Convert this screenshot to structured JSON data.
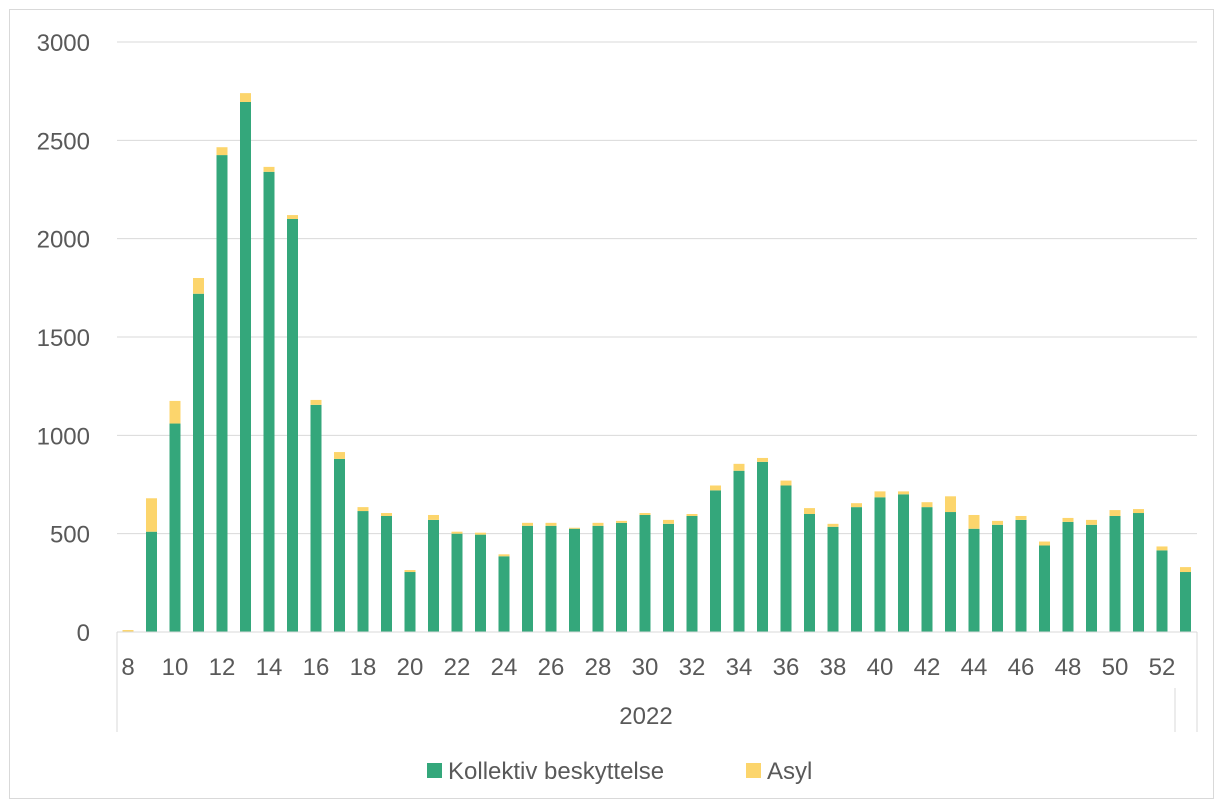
{
  "chart_data": {
    "type": "bar",
    "stacked": true,
    "title": "",
    "xlabel": "",
    "ylabel": "",
    "x_group_label": "2022",
    "categories": [
      "8",
      "9",
      "10",
      "11",
      "12",
      "13",
      "14",
      "15",
      "16",
      "17",
      "18",
      "19",
      "20",
      "21",
      "22",
      "23",
      "24",
      "25",
      "26",
      "27",
      "28",
      "29",
      "30",
      "31",
      "32",
      "33",
      "34",
      "35",
      "36",
      "37",
      "38",
      "39",
      "40",
      "41",
      "42",
      "43",
      "44",
      "45",
      "46",
      "47",
      "48",
      "49",
      "50",
      "51",
      "52",
      "53"
    ],
    "shown_x_ticks": [
      "8",
      "10",
      "12",
      "14",
      "16",
      "18",
      "20",
      "22",
      "24",
      "26",
      "28",
      "30",
      "32",
      "34",
      "36",
      "38",
      "40",
      "42",
      "44",
      "46",
      "48",
      "50",
      "52"
    ],
    "y_ticks": [
      "0",
      "500",
      "1000",
      "1500",
      "2000",
      "2500",
      "3000"
    ],
    "ylim": [
      0,
      3000
    ],
    "grid": true,
    "legend_position": "bottom",
    "series": [
      {
        "name": "Kollektiv beskyttelse",
        "color": "#34a77b",
        "values": [
          0,
          510,
          1060,
          1720,
          2425,
          2695,
          2340,
          2100,
          1155,
          880,
          615,
          590,
          305,
          570,
          500,
          495,
          385,
          540,
          540,
          525,
          540,
          555,
          595,
          550,
          590,
          720,
          820,
          865,
          745,
          600,
          535,
          635,
          685,
          700,
          635,
          610,
          525,
          545,
          570,
          440,
          560,
          545,
          590,
          605,
          415,
          305
        ]
      },
      {
        "name": "Asyl",
        "color": "#fcd56c",
        "values": [
          10,
          170,
          115,
          80,
          40,
          45,
          25,
          20,
          25,
          35,
          20,
          15,
          10,
          25,
          10,
          10,
          10,
          15,
          15,
          5,
          15,
          10,
          10,
          20,
          10,
          25,
          35,
          20,
          25,
          30,
          15,
          20,
          30,
          15,
          25,
          80,
          70,
          20,
          20,
          20,
          20,
          25,
          30,
          20,
          20,
          25
        ]
      }
    ]
  }
}
